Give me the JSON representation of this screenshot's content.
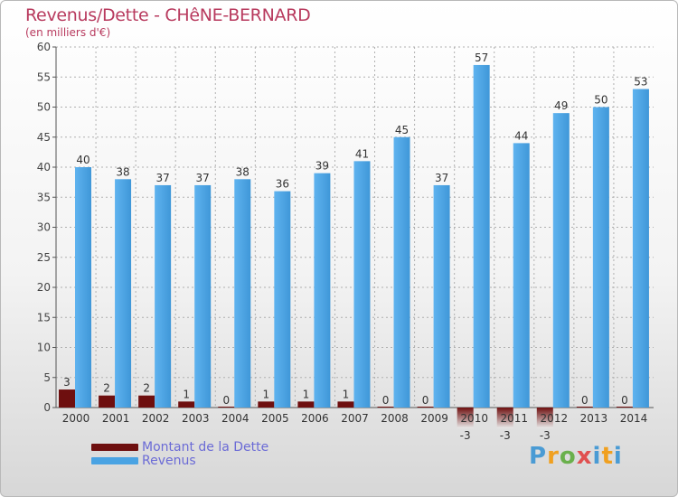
{
  "title": "Revenus/Dette - CHêNE-BERNARD",
  "subtitle": "(en milliers d'€)",
  "logo": "Proxiti",
  "colors": {
    "debt": "#6e0f0f",
    "revenue": "#4aa3e3",
    "axis": "#555555",
    "grid": "#b0b0b0",
    "title": "#b83a5e",
    "legend_text": "#6b6bd6"
  },
  "chart_data": {
    "type": "bar",
    "categories": [
      "2000",
      "2001",
      "2002",
      "2003",
      "2004",
      "2005",
      "2006",
      "2007",
      "2008",
      "2009",
      "2010",
      "2011",
      "2012",
      "2013",
      "2014"
    ],
    "series": [
      {
        "name": "Montant de la Dette",
        "values": [
          3,
          2,
          2,
          1,
          0,
          1,
          1,
          1,
          0,
          0,
          -3,
          -3,
          -3,
          0,
          0
        ]
      },
      {
        "name": "Revenus",
        "values": [
          40,
          38,
          37,
          37,
          38,
          36,
          39,
          41,
          45,
          37,
          57,
          44,
          49,
          50,
          53
        ]
      }
    ],
    "ylim": [
      0,
      60
    ],
    "yticks": [
      0,
      5,
      10,
      15,
      20,
      25,
      30,
      35,
      40,
      45,
      50,
      55,
      60
    ],
    "grid": true,
    "legend_position": "bottom-left"
  }
}
